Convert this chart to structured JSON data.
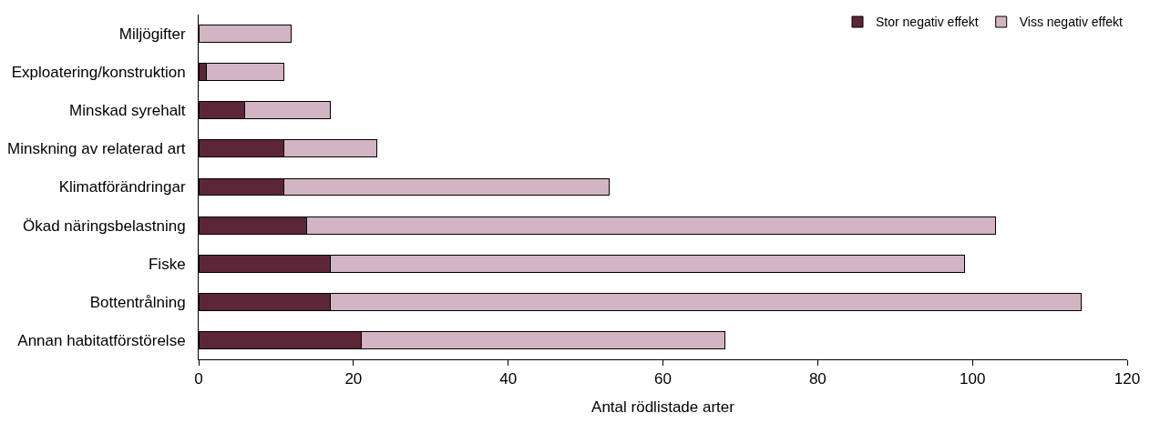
{
  "chart_data": {
    "type": "bar",
    "orientation": "horizontal",
    "stacked": true,
    "xlabel": "Antal rödlistade arter",
    "categories": [
      "Miljögifter",
      "Exploatering/konstruktion",
      "Minskad syrehalt",
      "Minskning av relaterad art",
      "Klimatförändringar",
      "Ökad näringsbelastning",
      "Fiske",
      "Bottentrålning",
      "Annan habitatförstörelse"
    ],
    "series": [
      {
        "name": "Stor negativ effekt",
        "color": "#5c2638",
        "values": [
          0,
          1,
          6,
          11,
          11,
          14,
          17,
          17,
          21
        ]
      },
      {
        "name": "Viss negativ effekt",
        "color": "#d2b4c4",
        "values": [
          12,
          10,
          11,
          12,
          42,
          89,
          82,
          97,
          47
        ]
      }
    ],
    "xlim": [
      0,
      120
    ],
    "xticks": [
      0,
      20,
      40,
      60,
      80,
      100,
      120
    ],
    "legend": "top right"
  }
}
